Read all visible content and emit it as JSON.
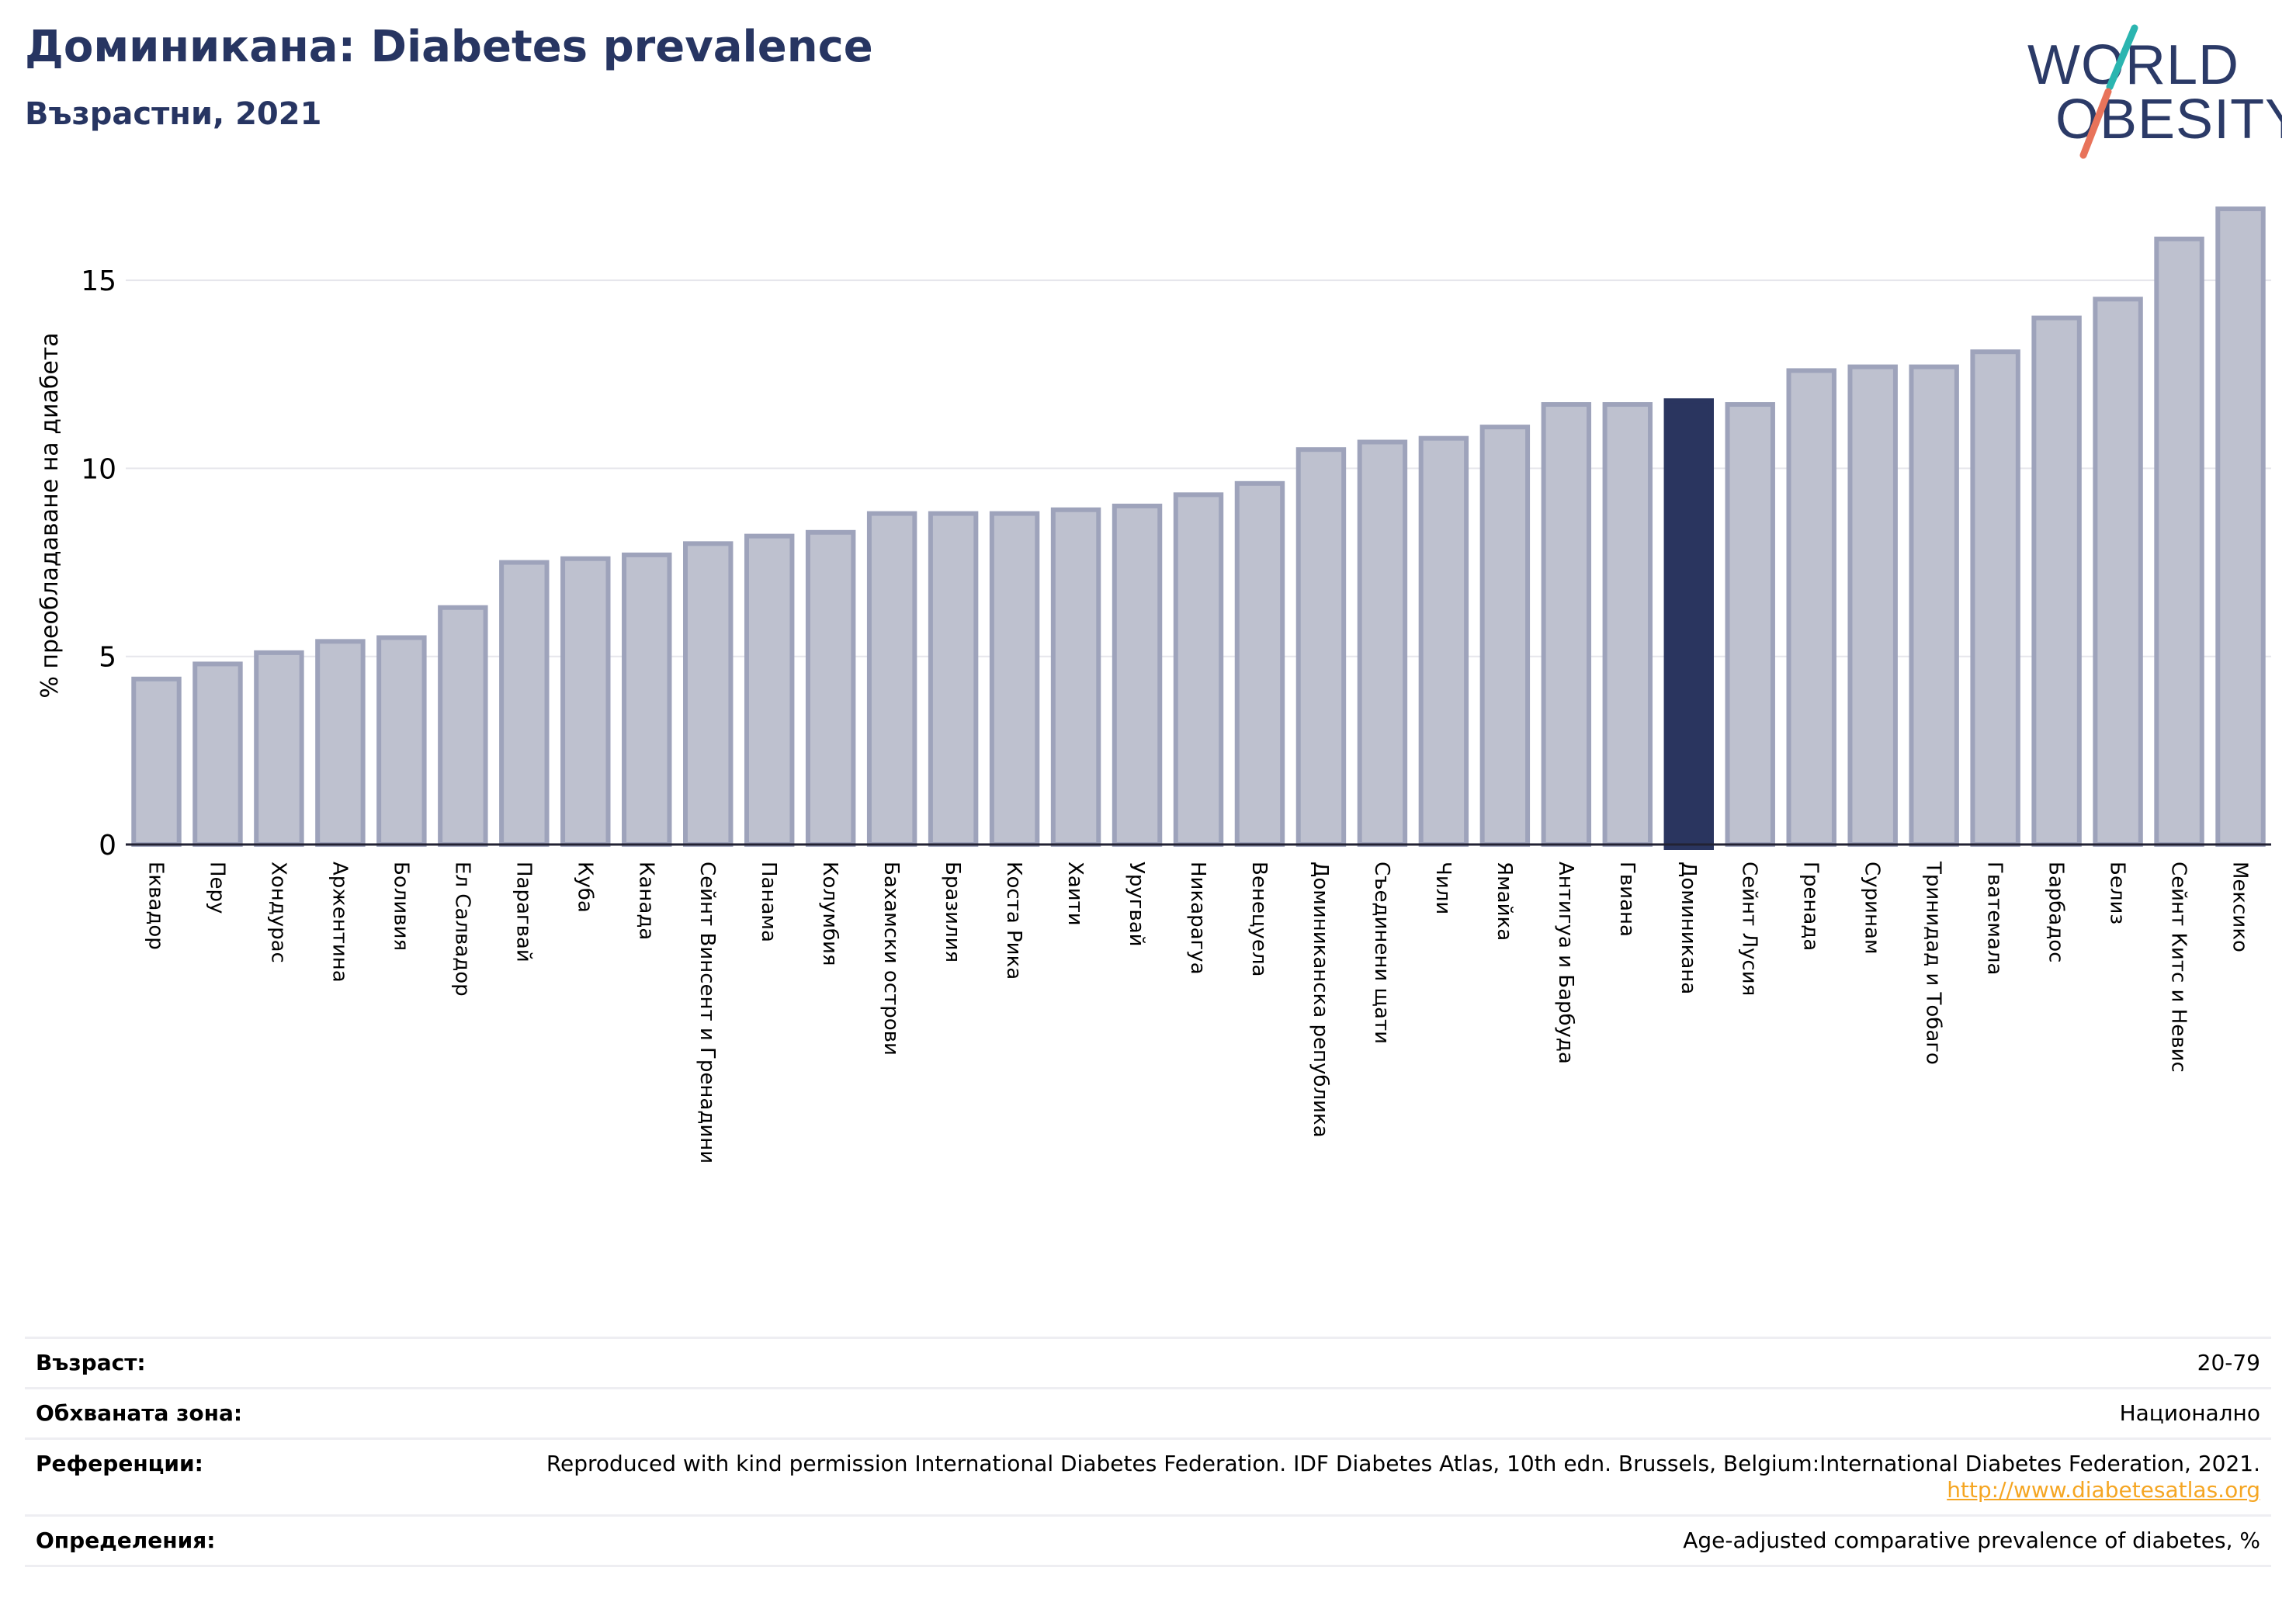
{
  "header": {
    "title": "Доминикана: Diabetes prevalence",
    "subtitle": "Възрастни, 2021"
  },
  "logo": {
    "line1": "WORLD",
    "line2": "OBESITY",
    "colors": {
      "text": "#2b3a67",
      "slash_top": "#2bb5b0",
      "slash_bottom": "#e8735a"
    }
  },
  "chart_data": {
    "type": "bar",
    "title": "",
    "ylabel": "% преобладаване на диабета",
    "xlabel": "",
    "ylim": [
      0,
      17.5
    ],
    "yticks": [
      0,
      5,
      10,
      15
    ],
    "grid": true,
    "highlight_category": "Доминикана",
    "colors": {
      "bar": "#bec1cf",
      "bar_edge": "#9ea3bb",
      "highlight": "#2a355f",
      "grid": "#e6e6ec",
      "axis": "#222233"
    },
    "categories": [
      "Еквадор",
      "Перу",
      "Хондурас",
      "Аржентина",
      "Боливия",
      "Ел Салвадор",
      "Парагвай",
      "Куба",
      "Канада",
      "Сейнт Винсент и Гренадини",
      "Панама",
      "Колумбия",
      "Бахамски острови",
      "Бразилия",
      "Коста Рика",
      "Хаити",
      "Уругвай",
      "Никарагуа",
      "Венецуела",
      "Доминиканска република",
      "Съединени щати",
      "Чили",
      "Ямайка",
      "Антигуа и Барбуда",
      "Гвиана",
      "Доминикана",
      "Сейнт Лусия",
      "Гренада",
      "Суринам",
      "Тринидад и Тобаго",
      "Гватемала",
      "Барбадос",
      "Белиз",
      "Сейнт Китс и Невис",
      "Мексико"
    ],
    "values": [
      4.4,
      4.8,
      5.1,
      5.4,
      5.5,
      6.3,
      7.5,
      7.6,
      7.7,
      8.0,
      8.2,
      8.3,
      8.8,
      8.8,
      8.8,
      8.9,
      9.0,
      9.3,
      9.6,
      10.5,
      10.7,
      10.8,
      11.1,
      11.7,
      11.7,
      11.8,
      11.7,
      12.6,
      12.7,
      12.7,
      13.1,
      14.0,
      14.5,
      16.1,
      16.9
    ]
  },
  "info": [
    {
      "label": "Възраст:",
      "value": "20-79"
    },
    {
      "label": "Обхваната зона:",
      "value": "Национално"
    },
    {
      "label": "Референции:",
      "value": "Reproduced with kind permission International Diabetes Federation.  IDF Diabetes Atlas, 10th edn. Brussels, Belgium:International Diabetes Federation, 2021. ",
      "link": "http://www.diabetesatlas.org"
    },
    {
      "label": "Определения:",
      "value": "Age-adjusted comparative prevalence of diabetes, %"
    }
  ]
}
